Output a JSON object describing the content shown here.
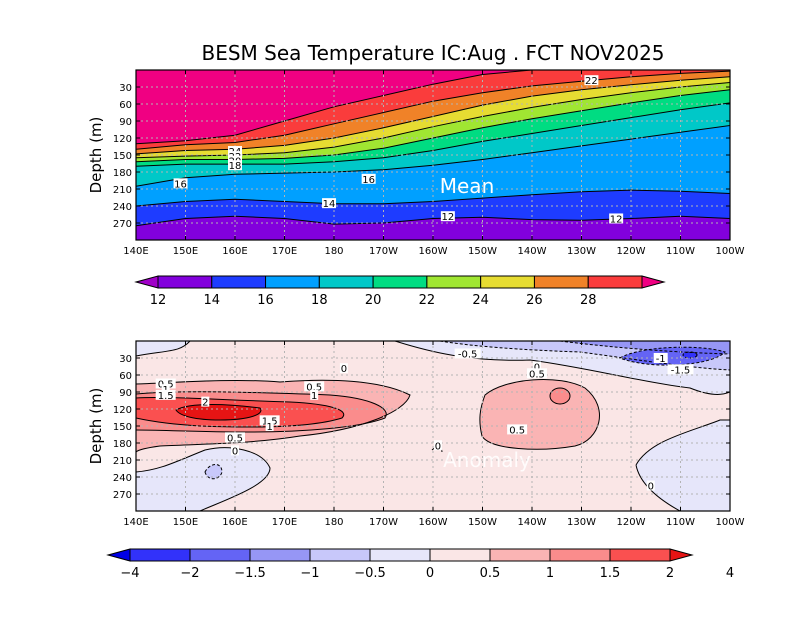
{
  "title": "BESM Sea Temperature  IC:Aug . FCT NOV2025",
  "colors": {
    "mean_levels": [
      "#a000c8",
      "#8200dc",
      "#1e3cff",
      "#00a0ff",
      "#00c8c8",
      "#00dc82",
      "#a0e632",
      "#e6dc32",
      "#f08228",
      "#fa3c3c",
      "#f00082"
    ],
    "anomaly_levels": [
      "#0000e6",
      "#3232fa",
      "#6464f5",
      "#9696f5",
      "#c8c8fa",
      "#e6e6fa",
      "#fae6e6",
      "#fab4b4",
      "#fa8c8c",
      "#fa5050",
      "#e61414"
    ]
  },
  "chart_data": [
    {
      "type": "heatmap",
      "name": "mean",
      "panel_label": "Mean",
      "ylabel": "Depth (m)",
      "xticks": [
        "140E",
        "150E",
        "160E",
        "170E",
        "180",
        "170W",
        "160W",
        "150W",
        "140W",
        "130W",
        "120W",
        "110W",
        "100W"
      ],
      "yticks": [
        "30",
        "60",
        "90",
        "120",
        "150",
        "180",
        "210",
        "240",
        "270"
      ],
      "xlim": [
        140,
        260
      ],
      "ylim": [
        0,
        300
      ],
      "contour_levels": [
        12,
        14,
        16,
        18,
        20,
        22,
        24,
        26,
        28
      ],
      "colorbar_labels": [
        "12",
        "14",
        "16",
        "18",
        "20",
        "22",
        "24",
        "26",
        "28"
      ],
      "contour_labels": [
        {
          "text": "22",
          "x": 232,
          "depth": 18
        },
        {
          "text": "24",
          "x": 160,
          "depth": 143
        },
        {
          "text": "22",
          "x": 160,
          "depth": 152
        },
        {
          "text": "20",
          "x": 160,
          "depth": 160
        },
        {
          "text": "18",
          "x": 160,
          "depth": 168
        },
        {
          "text": "16",
          "x": 149,
          "depth": 200
        },
        {
          "text": "16",
          "x": 187,
          "depth": 192
        },
        {
          "text": "14",
          "x": 179,
          "depth": 235
        },
        {
          "text": "12",
          "x": 203,
          "depth": 258
        },
        {
          "text": "12",
          "x": 237,
          "depth": 262
        }
      ],
      "isotherm_depths": {
        "x": [
          140,
          150,
          160,
          170,
          180,
          190,
          200,
          210,
          220,
          230,
          240,
          250,
          260
        ],
        "d28": [
          130,
          125,
          115,
          90,
          65,
          45,
          25,
          8,
          0,
          0,
          0,
          0,
          0
        ],
        "d26": [
          140,
          132,
          128,
          115,
          95,
          75,
          55,
          40,
          28,
          20,
          12,
          6,
          2
        ],
        "d24": [
          148,
          142,
          140,
          133,
          120,
          102,
          82,
          62,
          46,
          35,
          26,
          18,
          12
        ],
        "d22": [
          155,
          152,
          150,
          146,
          136,
          120,
          100,
          82,
          66,
          52,
          40,
          30,
          22
        ],
        "d20": [
          162,
          158,
          158,
          156,
          150,
          138,
          120,
          102,
          86,
          72,
          58,
          45,
          35
        ],
        "d18": [
          170,
          166,
          166,
          166,
          162,
          155,
          142,
          126,
          112,
          98,
          84,
          70,
          58
        ],
        "d16": [
          205,
          190,
          184,
          182,
          180,
          176,
          168,
          158,
          146,
          134,
          122,
          110,
          98
        ],
        "d14": [
          240,
          232,
          228,
          232,
          236,
          236,
          232,
          226,
          220,
          215,
          212,
          214,
          218
        ],
        "d12": [
          275,
          262,
          258,
          262,
          272,
          270,
          262,
          260,
          264,
          265,
          262,
          258,
          262
        ]
      }
    },
    {
      "type": "heatmap",
      "name": "anomaly",
      "panel_label": "Anomaly",
      "ylabel": "Depth (m)",
      "xticks": [
        "140E",
        "150E",
        "160E",
        "170E",
        "180",
        "170W",
        "160W",
        "150W",
        "140W",
        "130W",
        "120W",
        "110W",
        "100W"
      ],
      "yticks": [
        "30",
        "60",
        "90",
        "120",
        "150",
        "180",
        "210",
        "240",
        "270"
      ],
      "xlim": [
        140,
        260
      ],
      "ylim": [
        0,
        300
      ],
      "contour_levels": [
        -4,
        -2,
        -1.5,
        -1,
        -0.5,
        0,
        0.5,
        1,
        1.5,
        2,
        4
      ],
      "colorbar_labels": [
        "−4",
        "−2",
        "−1.5",
        "−1",
        "−0.5",
        "0",
        "0.5",
        "1",
        "1.5",
        "2",
        "4"
      ],
      "contour_labels": [
        {
          "text": "-0.5",
          "x": 207,
          "depth": 22
        },
        {
          "text": "-1",
          "x": 246,
          "depth": 30
        },
        {
          "text": "-1.5",
          "x": 250,
          "depth": 50
        },
        {
          "text": "0",
          "x": 182,
          "depth": 48
        },
        {
          "text": "0",
          "x": 221,
          "depth": 45
        },
        {
          "text": "0.5",
          "x": 221,
          "depth": 57
        },
        {
          "text": "0.5",
          "x": 146,
          "depth": 75
        },
        {
          "text": "1",
          "x": 146,
          "depth": 85
        },
        {
          "text": "1.5",
          "x": 146,
          "depth": 95
        },
        {
          "text": "2",
          "x": 154,
          "depth": 107
        },
        {
          "text": "0.5",
          "x": 176,
          "depth": 80
        },
        {
          "text": "1",
          "x": 176,
          "depth": 95
        },
        {
          "text": "1.5",
          "x": 167,
          "depth": 140
        },
        {
          "text": "1",
          "x": 167,
          "depth": 150
        },
        {
          "text": "0.5",
          "x": 160,
          "depth": 170
        },
        {
          "text": "0",
          "x": 160,
          "depth": 193
        },
        {
          "text": "0.5",
          "x": 217,
          "depth": 156
        },
        {
          "text": "0",
          "x": 201,
          "depth": 184
        },
        {
          "text": "0",
          "x": 244,
          "depth": 255
        }
      ]
    }
  ]
}
